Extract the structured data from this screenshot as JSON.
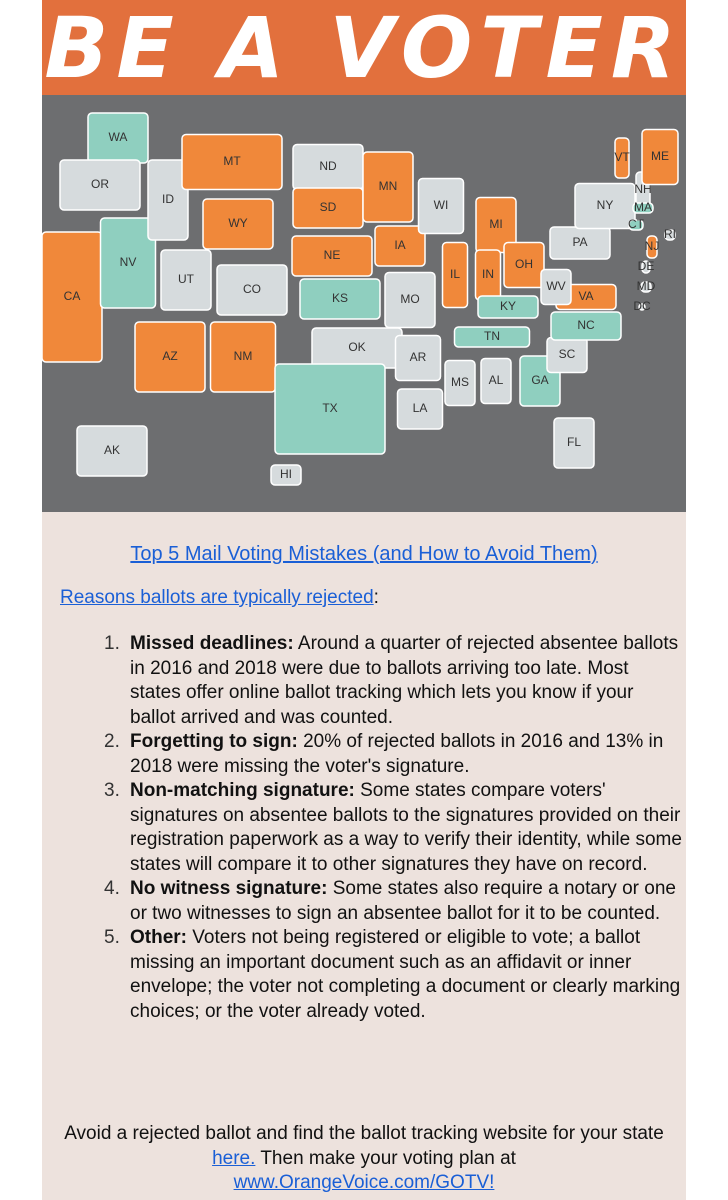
{
  "header": {
    "title": "BE A VOTER"
  },
  "map": {
    "states": [
      {
        "label": "WA",
        "color": "#8fcfbf"
      },
      {
        "label": "OR",
        "color": "#d6dbdd"
      },
      {
        "label": "CA",
        "color": "#f0883a"
      },
      {
        "label": "NV",
        "color": "#8fcfbf"
      },
      {
        "label": "ID",
        "color": "#d6dbdd"
      },
      {
        "label": "MT",
        "color": "#f0883a"
      },
      {
        "label": "WY",
        "color": "#f0883a"
      },
      {
        "label": "UT",
        "color": "#d6dbdd"
      },
      {
        "label": "CO",
        "color": "#d6dbdd"
      },
      {
        "label": "AZ",
        "color": "#f0883a"
      },
      {
        "label": "NM",
        "color": "#f0883a"
      },
      {
        "label": "ND",
        "color": "#d6dbdd"
      },
      {
        "label": "SD",
        "color": "#f0883a"
      },
      {
        "label": "NE",
        "color": "#f0883a"
      },
      {
        "label": "KS",
        "color": "#8fcfbf"
      },
      {
        "label": "OK",
        "color": "#d6dbdd"
      },
      {
        "label": "TX",
        "color": "#8fcfbf"
      },
      {
        "label": "MN",
        "color": "#f0883a"
      },
      {
        "label": "IA",
        "color": "#f0883a"
      },
      {
        "label": "MO",
        "color": "#d6dbdd"
      },
      {
        "label": "AR",
        "color": "#d6dbdd"
      },
      {
        "label": "LA",
        "color": "#d6dbdd"
      },
      {
        "label": "WI",
        "color": "#d6dbdd"
      },
      {
        "label": "IL",
        "color": "#f0883a"
      },
      {
        "label": "MI",
        "color": "#f0883a"
      },
      {
        "label": "IN",
        "color": "#f0883a"
      },
      {
        "label": "OH",
        "color": "#f0883a"
      },
      {
        "label": "KY",
        "color": "#8fcfbf"
      },
      {
        "label": "TN",
        "color": "#8fcfbf"
      },
      {
        "label": "MS",
        "color": "#d6dbdd"
      },
      {
        "label": "AL",
        "color": "#d6dbdd"
      },
      {
        "label": "GA",
        "color": "#8fcfbf"
      },
      {
        "label": "FL",
        "color": "#d6dbdd"
      },
      {
        "label": "SC",
        "color": "#d6dbdd"
      },
      {
        "label": "NC",
        "color": "#8fcfbf"
      },
      {
        "label": "VA",
        "color": "#f0883a"
      },
      {
        "label": "WV",
        "color": "#d6dbdd"
      },
      {
        "label": "PA",
        "color": "#d6dbdd"
      },
      {
        "label": "NY",
        "color": "#d6dbdd"
      },
      {
        "label": "VT",
        "color": "#f0883a"
      },
      {
        "label": "NH",
        "color": "#d6dbdd"
      },
      {
        "label": "ME",
        "color": "#f0883a"
      },
      {
        "label": "MA",
        "color": "#8fcfbf"
      },
      {
        "label": "CT",
        "color": "#8fcfbf"
      },
      {
        "label": "RI",
        "color": "#d6dbdd"
      },
      {
        "label": "NJ",
        "color": "#f0883a"
      },
      {
        "label": "DE",
        "color": "#d6dbdd"
      },
      {
        "label": "MD",
        "color": "#d6dbdd"
      },
      {
        "label": "DC",
        "color": "#d6dbdd"
      },
      {
        "label": "AK",
        "color": "#d6dbdd"
      },
      {
        "label": "HI",
        "color": "#d6dbdd"
      }
    ]
  },
  "article": {
    "title": "Top 5 Mail Voting Mistakes (and How to Avoid Them)",
    "intro": {
      "link": "Reasons ballots are typically rejected",
      "text": ":"
    },
    "items": [
      {
        "number": "1.",
        "heading": "Missed deadlines:",
        "text": "Around a quarter of rejected absentee ballots in 2016 and 2018 were due to ballots arriving too late. Most states offer online ballot tracking which lets you know if your ballot arrived and was counted."
      },
      {
        "number": "2.",
        "heading": "Forgetting to sign:",
        "text": "20% of rejected ballots in 2016 and 13% in 2018 were missing the voter's signature."
      },
      {
        "number": "3.",
        "heading": "Non-matching signature:",
        "text": "Some states compare voters' signatures on absentee ballots to the signatures provided on their registration paperwork as a way to verify their identity, while some states will compare it to other signatures they have on record."
      },
      {
        "number": "4.",
        "heading": "No witness signature:",
        "text": "Some states also require a notary or one or two witnesses to sign an absentee ballot for it to be counted."
      },
      {
        "number": "5.",
        "heading": "Other:",
        "text": "Voters not being registered or eligible to vote; a ballot missing an important document such as an affidavit or inner envelope; the voter not completing a document or clearly marking choices; or the voter already voted."
      }
    ],
    "footer": {
      "text1": "Avoid a rejected ballot and find the ballot tracking website for your state ",
      "link1": "here.",
      "text2": " Then make your voting plan at ",
      "link2": "www.OrangeVoice.com/GOTV!"
    }
  }
}
